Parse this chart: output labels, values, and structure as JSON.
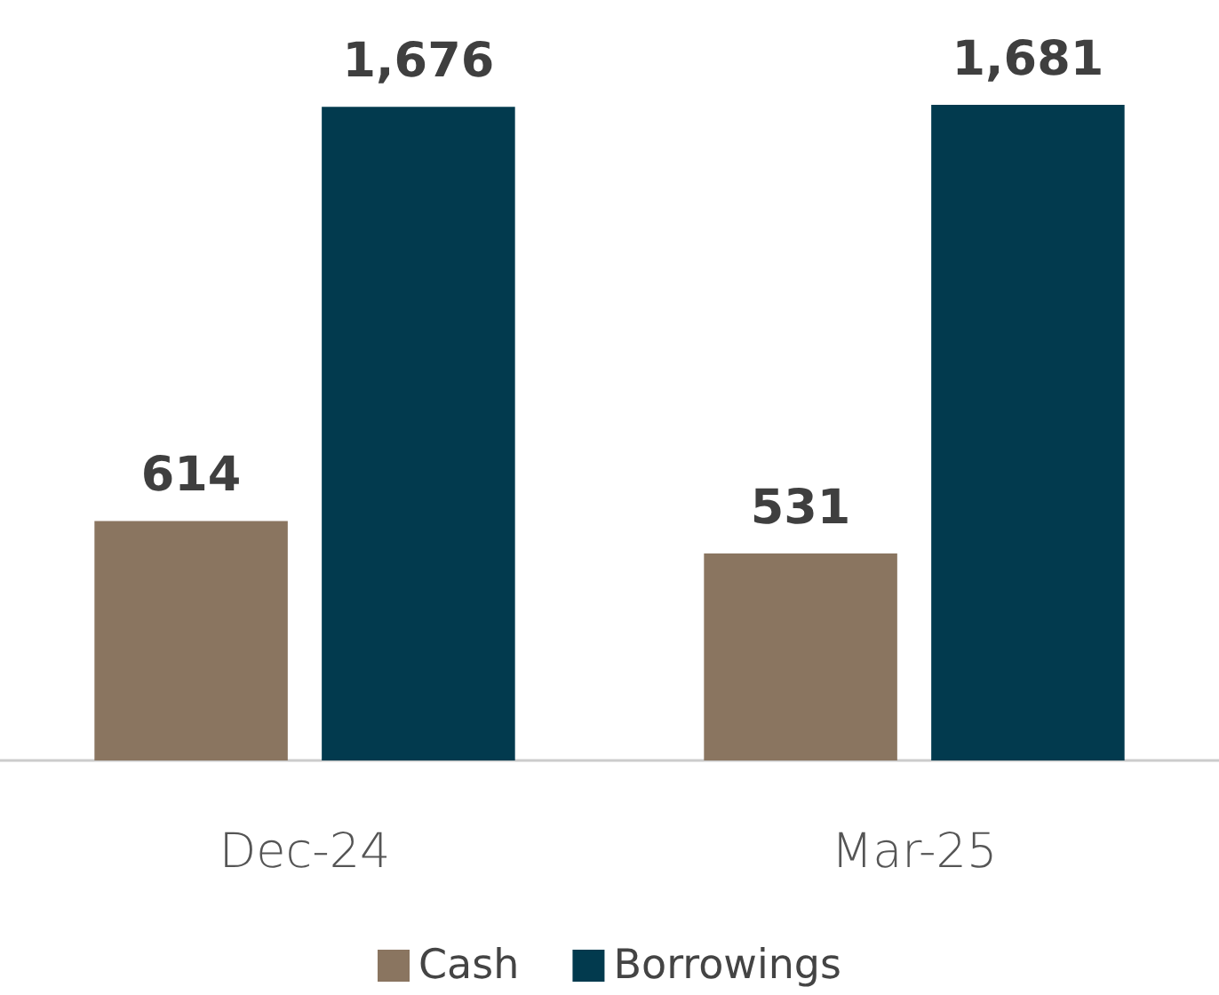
{
  "chart_data": {
    "type": "bar",
    "categories": [
      "Dec-24",
      "Mar-25"
    ],
    "series": [
      {
        "name": "Cash",
        "color": "#8a7560",
        "values": [
          614,
          531
        ],
        "value_labels": [
          "614",
          "531"
        ]
      },
      {
        "name": "Borrowings",
        "color": "#023a4e",
        "values": [
          1676,
          1681
        ],
        "value_labels": [
          "1,676",
          "1,681"
        ]
      }
    ],
    "grid": false,
    "legend": "bottom"
  }
}
